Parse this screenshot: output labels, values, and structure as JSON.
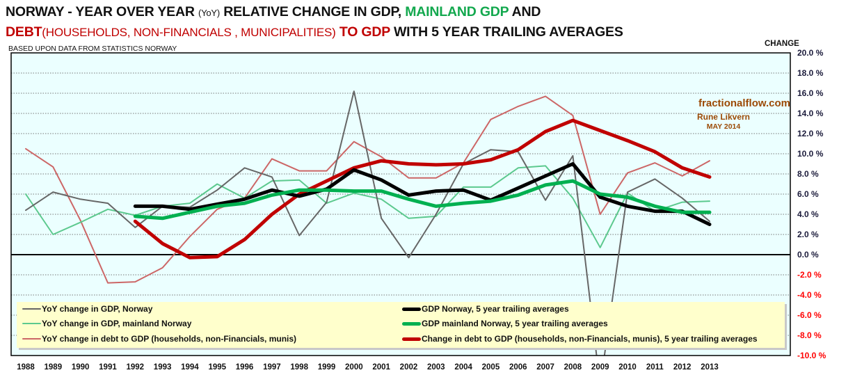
{
  "header": {
    "title_line1": {
      "part1": "NORWAY - YEAR OVER YEAR ",
      "part2": "(YoY)",
      "part3": " RELATIVE CHANGE IN GDP, ",
      "part4": "MAINLAND GDP",
      "part5": " AND"
    },
    "title_line2": {
      "part1": "DEBT",
      "part2": "(HOUSEHOLDS, NON-FINANCIALS , MUNICIPALITIES)",
      "part3": " TO GDP",
      "part4": " WITH 5 YEAR TRAILING AVERAGES"
    },
    "subtitle": "BASED UPON DATA FROM STATISTICS  NORWAY",
    "y_axis_title": "CHANGE"
  },
  "watermark": {
    "site": "fractionalflow.com",
    "author": "Rune Likvern",
    "date": "MAY 2014"
  },
  "colors": {
    "plot_background": "#ebffff",
    "legend_background": "#ffffcc",
    "gdp_yoy": "#666666",
    "mainland_yoy": "#5cc98e",
    "debt_yoy": "#cc6666",
    "gdp_avg": "#000000",
    "mainland_avg": "#00b050",
    "debt_avg": "#c00000",
    "negative_tick": "#ff0000",
    "watermark": "#9c4a06"
  },
  "chart_data": {
    "type": "line",
    "title": "NORWAY - YEAR OVER YEAR (YoY) RELATIVE CHANGE IN GDP, MAINLAND GDP AND DEBT (HOUSEHOLDS, NON-FINANCIALS, MUNICIPALITIES) TO GDP WITH 5 YEAR TRAILING AVERAGES",
    "xlabel": "",
    "ylabel": "CHANGE",
    "ylim": [
      -10,
      20
    ],
    "y_axis_side": "right",
    "grid": "horizontal dotted",
    "legend_position": "bottom-inside",
    "x": [
      1988,
      1989,
      1990,
      1991,
      1992,
      1993,
      1994,
      1995,
      1996,
      1997,
      1998,
      1999,
      2000,
      2001,
      2002,
      2003,
      2004,
      2005,
      2006,
      2007,
      2008,
      2009,
      2010,
      2011,
      2012,
      2013
    ],
    "x_tick_labels": [
      "1988",
      "1989",
      "1990",
      "1991",
      "1992",
      "1993",
      "1994",
      "1995",
      "1996",
      "1997",
      "1998",
      "1999",
      "2000",
      "2001",
      "2002",
      "2003",
      "2004",
      "2005",
      "2006",
      "2007",
      "2008",
      "2009",
      "2010",
      "2011",
      "2012",
      "2013"
    ],
    "y_ticks": [
      20,
      18,
      16,
      14,
      12,
      10,
      8,
      6,
      4,
      2,
      0,
      -2,
      -4,
      -6,
      -8,
      -10
    ],
    "y_tick_labels": [
      "20.0  %",
      "18.0  %",
      "16.0  %",
      "14.0  %",
      "12.0  %",
      "10.0  %",
      "8.0  %",
      "6.0  %",
      "4.0  %",
      "2.0  %",
      "0.0  %",
      "-2.0 %",
      "-4.0 %",
      "-6.0 %",
      "-8.0 %",
      "-10.0 %"
    ],
    "series": [
      {
        "name": "YoY change in GDP, Norway",
        "key": "gdp_yoy",
        "style": "thin",
        "values": [
          4.4,
          6.2,
          5.5,
          5.1,
          2.7,
          4.8,
          4.7,
          6.4,
          8.6,
          7.7,
          1.9,
          5.2,
          16.2,
          3.6,
          -0.3,
          4.0,
          9.0,
          10.4,
          10.2,
          5.4,
          9.8,
          -13.0,
          6.2,
          7.5,
          5.6,
          3.3
        ]
      },
      {
        "name": "YoY change in GDP, mainland Norway",
        "key": "mainland_yoy",
        "style": "thin",
        "values": [
          6.0,
          2.0,
          3.2,
          4.5,
          3.9,
          4.8,
          5.1,
          7.0,
          5.6,
          7.3,
          7.4,
          5.1,
          6.1,
          5.5,
          3.6,
          3.8,
          6.7,
          6.7,
          8.6,
          8.8,
          5.6,
          0.7,
          6.1,
          4.3,
          5.2,
          5.3
        ]
      },
      {
        "name": "YoY change in debt to GDP (households, non-Financials, munis)",
        "key": "debt_yoy",
        "style": "thin",
        "values": [
          10.5,
          8.7,
          3.4,
          -2.8,
          -2.7,
          -1.3,
          1.8,
          4.5,
          5.6,
          9.5,
          8.3,
          8.3,
          11.2,
          9.7,
          7.6,
          7.6,
          9.1,
          13.4,
          14.7,
          15.7,
          13.8,
          4.0,
          8.1,
          9.1,
          7.8,
          9.3
        ]
      },
      {
        "name": "GDP Norway, 5 year trailing averages",
        "key": "gdp_avg",
        "style": "thick",
        "values": [
          null,
          null,
          null,
          null,
          4.8,
          4.8,
          4.5,
          5.0,
          5.5,
          6.4,
          5.8,
          6.5,
          8.4,
          7.4,
          5.9,
          6.3,
          6.4,
          5.4,
          6.6,
          7.8,
          9.0,
          5.7,
          4.8,
          4.3,
          4.3,
          3.0
        ]
      },
      {
        "name": "GDP mainland Norway, 5 year trailing averages",
        "key": "mainland_avg",
        "style": "thick",
        "values": [
          null,
          null,
          null,
          null,
          3.8,
          3.6,
          4.2,
          4.8,
          5.1,
          5.9,
          6.4,
          6.4,
          6.3,
          6.3,
          5.5,
          4.8,
          5.1,
          5.3,
          5.9,
          6.9,
          7.3,
          6.0,
          5.7,
          4.8,
          4.2,
          4.2
        ]
      },
      {
        "name": "Change in debt to GDP (households, non-Financials, munis), 5 year trailing averages",
        "key": "debt_avg",
        "style": "thick",
        "values": [
          null,
          null,
          null,
          null,
          3.3,
          1.1,
          -0.3,
          -0.2,
          1.5,
          4.0,
          6.0,
          7.3,
          8.6,
          9.3,
          9.0,
          8.9,
          9.0,
          9.4,
          10.4,
          12.2,
          13.3,
          12.3,
          11.3,
          10.2,
          8.6,
          7.7
        ]
      }
    ]
  },
  "legend": {
    "left": [
      {
        "label": "YoY change in GDP, Norway",
        "key": "gdp_yoy"
      },
      {
        "label": "YoY change in GDP, mainland Norway",
        "key": "mainland_yoy"
      },
      {
        "label": "YoY change in debt to GDP (households, non-Financials, munis)",
        "key": "debt_yoy"
      }
    ],
    "right": [
      {
        "label": "GDP Norway, 5 year trailing averages",
        "key": "gdp_avg"
      },
      {
        "label": "GDP mainland Norway, 5 year trailing averages",
        "key": "mainland_avg"
      },
      {
        "label": "Change in debt to GDP (households, non-Financials, munis), 5 year trailing averages",
        "key": "debt_avg"
      }
    ]
  }
}
